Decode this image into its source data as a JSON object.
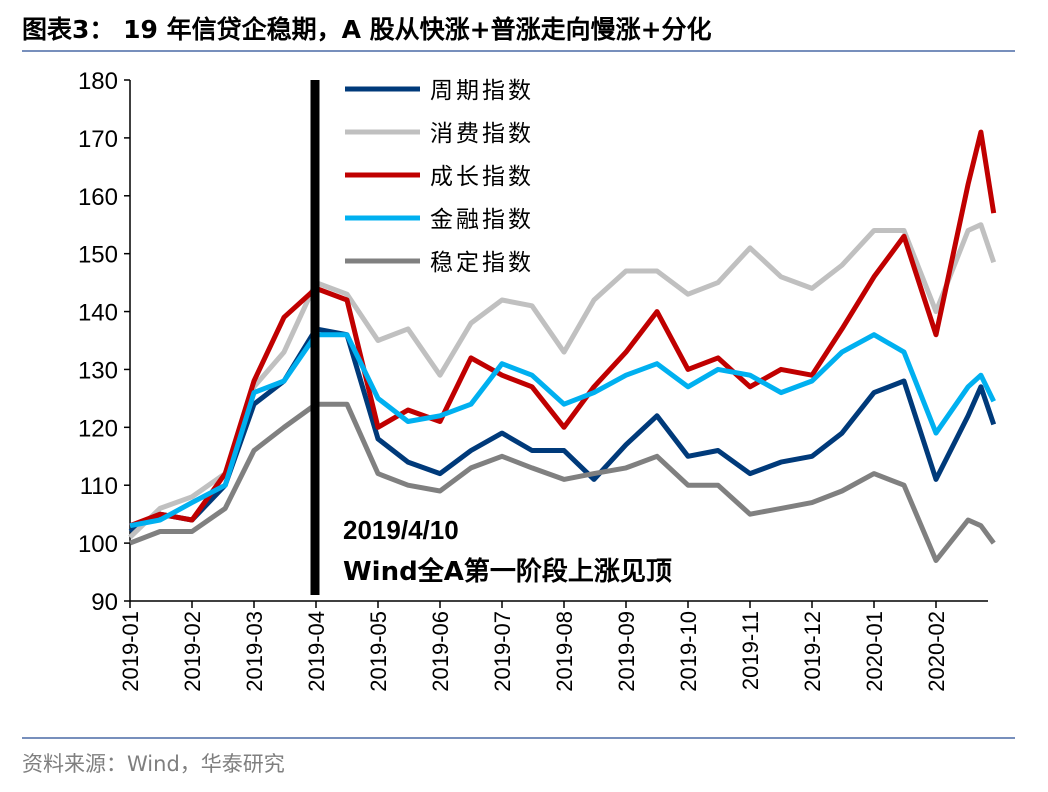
{
  "title": "图表3： 19 年信贷企稳期，A 股从快涨+普涨走向慢涨+分化",
  "source": "资料来源：Wind，华泰研究",
  "chart_data": {
    "type": "line",
    "title": "图表3： 19 年信贷企稳期，A 股从快涨+普涨走向慢涨+分化",
    "xlabel": "",
    "ylabel": "",
    "ylim": [
      90,
      180
    ],
    "yticks": [
      "90",
      "100",
      "110",
      "120",
      "130",
      "140",
      "150",
      "160",
      "170",
      "180"
    ],
    "xticks": [
      "2019-01",
      "2019-02",
      "2019-03",
      "2019-04",
      "2019-05",
      "2019-06",
      "2019-07",
      "2019-08",
      "2019-09",
      "2019-10",
      "2019-11",
      "2019-12",
      "2020-01",
      "2020-02"
    ],
    "grid": false,
    "legend_position": "top-left-inside",
    "annotation": {
      "line1": "2019/4/10",
      "line2": "Wind全A第一阶段上涨见顶",
      "marker_tick": "2019-04"
    },
    "x": [
      "2019-01-01",
      "2019-01-16",
      "2019-02-01",
      "2019-02-16",
      "2019-03-01",
      "2019-03-16",
      "2019-04-01",
      "2019-04-16",
      "2019-05-01",
      "2019-05-16",
      "2019-06-01",
      "2019-06-16",
      "2019-07-01",
      "2019-07-16",
      "2019-08-01",
      "2019-08-16",
      "2019-09-01",
      "2019-09-16",
      "2019-10-01",
      "2019-10-16",
      "2019-11-01",
      "2019-11-16",
      "2019-12-01",
      "2019-12-16",
      "2020-01-01",
      "2020-01-16",
      "2020-02-01",
      "2020-02-16",
      "2020-02-22",
      "2020-02-28"
    ],
    "series": [
      {
        "name": "周期指数",
        "color": "#003a7a",
        "values": [
          102,
          105,
          104,
          110,
          124,
          128,
          137,
          136,
          118,
          114,
          112,
          116,
          119,
          116,
          116,
          111,
          117,
          122,
          115,
          116,
          112,
          114,
          115,
          119,
          126,
          128,
          111,
          122,
          127,
          120.5
        ]
      },
      {
        "name": "消费指数",
        "color": "#c0c0c0",
        "values": [
          101,
          106,
          108,
          112,
          127,
          133,
          145,
          143,
          135,
          137,
          129,
          138,
          142,
          141,
          133,
          142,
          147,
          147,
          143,
          145,
          151,
          146,
          144,
          148,
          154,
          154,
          140,
          154,
          155,
          148.5
        ]
      },
      {
        "name": "成长指数",
        "color": "#c00000",
        "values": [
          103,
          105,
          104,
          112,
          128,
          139,
          144,
          142,
          120,
          123,
          121,
          132,
          129,
          127,
          120,
          127,
          133,
          140,
          130,
          132,
          127,
          130,
          129,
          137,
          146,
          153,
          136,
          162,
          171,
          157
        ]
      },
      {
        "name": "金融指数",
        "color": "#00b0f0",
        "values": [
          103,
          104,
          107,
          110,
          126,
          128,
          136,
          136,
          125,
          121,
          122,
          124,
          131,
          129,
          124,
          126,
          129,
          131,
          127,
          130,
          129,
          126,
          128,
          133,
          136,
          133,
          119,
          127,
          129,
          124.5
        ]
      },
      {
        "name": "稳定指数",
        "color": "#808080",
        "values": [
          100,
          102,
          102,
          106,
          116,
          120,
          124,
          124,
          112,
          110,
          109,
          113,
          115,
          113,
          111,
          112,
          113,
          115,
          110,
          110,
          105,
          106,
          107,
          109,
          112,
          110,
          97,
          104,
          103,
          100
        ]
      }
    ]
  }
}
